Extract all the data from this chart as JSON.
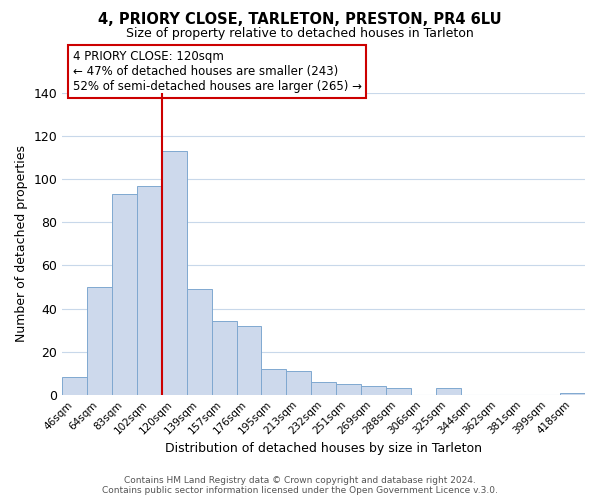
{
  "title": "4, PRIORY CLOSE, TARLETON, PRESTON, PR4 6LU",
  "subtitle": "Size of property relative to detached houses in Tarleton",
  "xlabel": "Distribution of detached houses by size in Tarleton",
  "ylabel": "Number of detached properties",
  "bar_labels": [
    "46sqm",
    "64sqm",
    "83sqm",
    "102sqm",
    "120sqm",
    "139sqm",
    "157sqm",
    "176sqm",
    "195sqm",
    "213sqm",
    "232sqm",
    "251sqm",
    "269sqm",
    "288sqm",
    "306sqm",
    "325sqm",
    "344sqm",
    "362sqm",
    "381sqm",
    "399sqm",
    "418sqm"
  ],
  "bar_values": [
    8,
    50,
    93,
    97,
    113,
    49,
    34,
    32,
    12,
    11,
    6,
    5,
    4,
    3,
    0,
    3,
    0,
    0,
    0,
    0,
    1
  ],
  "bar_color": "#cdd9ec",
  "bar_edge_color": "#7fa8d0",
  "highlight_index": 4,
  "highlight_line_color": "#cc0000",
  "ylim": [
    0,
    140
  ],
  "yticks": [
    0,
    20,
    40,
    60,
    80,
    100,
    120,
    140
  ],
  "annotation_title": "4 PRIORY CLOSE: 120sqm",
  "annotation_line1": "← 47% of detached houses are smaller (243)",
  "annotation_line2": "52% of semi-detached houses are larger (265) →",
  "annotation_box_color": "#ffffff",
  "annotation_box_edge": "#cc0000",
  "footer1": "Contains HM Land Registry data © Crown copyright and database right 2024.",
  "footer2": "Contains public sector information licensed under the Open Government Licence v.3.0.",
  "background_color": "#ffffff",
  "grid_color": "#c8d8ea"
}
